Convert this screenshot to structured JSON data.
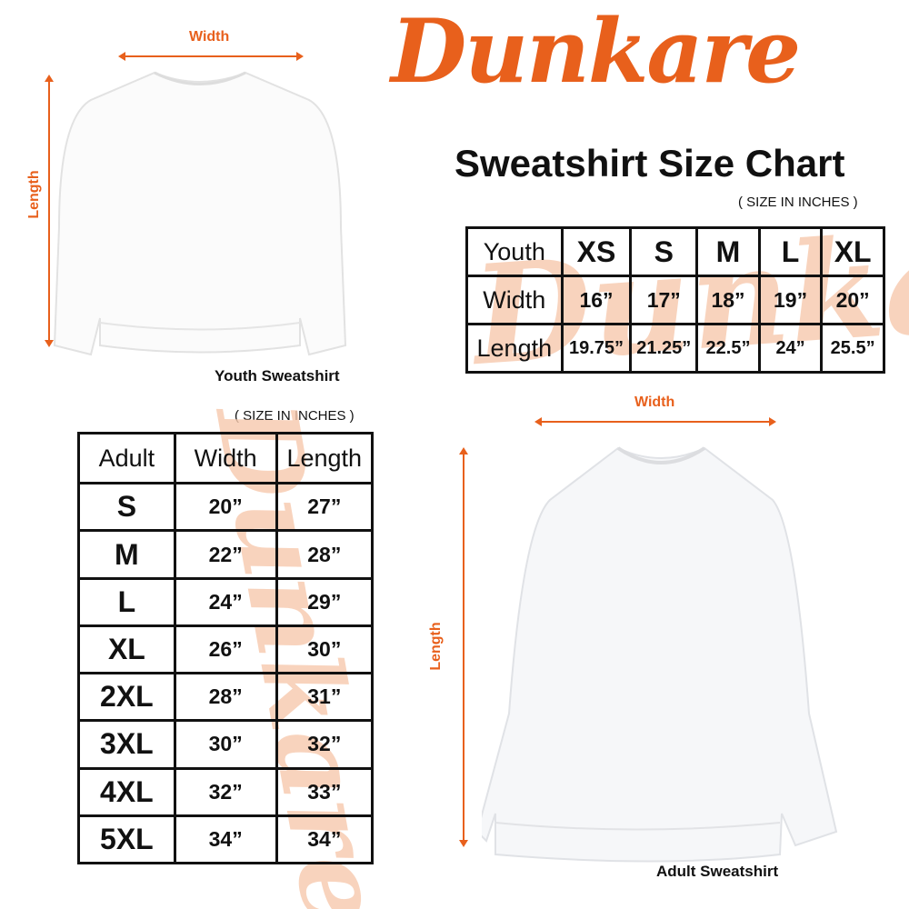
{
  "brand": "Dunkare",
  "title": "Sweatshirt Size Chart",
  "colors": {
    "accent": "#e8601c",
    "watermark": "#f7c9ad"
  },
  "youth": {
    "note": "( SIZE IN INCHES )",
    "caption": "Youth Sweatshirt",
    "width_label": "Width",
    "length_label": "Length",
    "header": [
      "Youth",
      "XS",
      "S",
      "M",
      "L",
      "XL"
    ],
    "rows": [
      [
        "Width",
        "16”",
        "17”",
        "18”",
        "19”",
        "20”"
      ],
      [
        "Length",
        "19.75”",
        "21.25”",
        "22.5”",
        "24”",
        "25.5”"
      ]
    ]
  },
  "adult": {
    "note": "( SIZE IN INCHES )",
    "caption": "Adult Sweatshirt",
    "width_label": "Width",
    "length_label": "Length",
    "header": [
      "Adult",
      "Width",
      "Length"
    ],
    "rows": [
      [
        "S",
        "20”",
        "27”"
      ],
      [
        "M",
        "22”",
        "28”"
      ],
      [
        "L",
        "24”",
        "29”"
      ],
      [
        "XL",
        "26”",
        "30”"
      ],
      [
        "2XL",
        "28”",
        "31”"
      ],
      [
        "3XL",
        "30”",
        "32”"
      ],
      [
        "4XL",
        "32”",
        "33”"
      ],
      [
        "5XL",
        "34”",
        "34”"
      ]
    ]
  }
}
